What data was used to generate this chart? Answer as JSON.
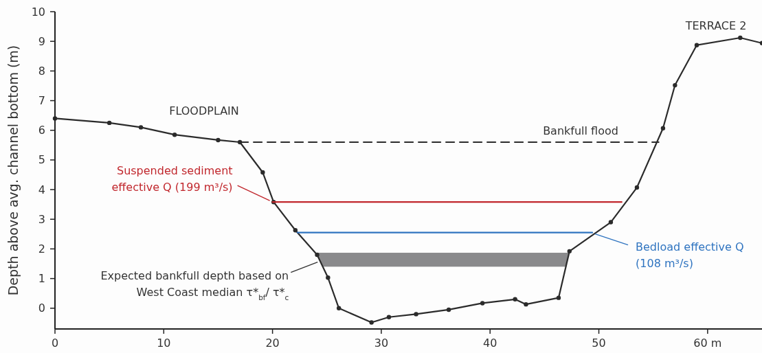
{
  "chart_data": {
    "type": "line",
    "ylabel": "Depth above avg. channel bottom (m)",
    "xlim": [
      0,
      65
    ],
    "ylim": [
      -0.7,
      10
    ],
    "xticks": [
      0,
      10,
      20,
      30,
      40,
      50,
      {
        "value": 60,
        "label": "60 m"
      }
    ],
    "yticks": [
      0,
      1,
      2,
      3,
      4,
      5,
      6,
      7,
      8,
      9,
      10
    ],
    "grid": false,
    "bands": [
      {
        "axis": "y",
        "from": 1.4,
        "to": 1.87,
        "color": "#8a8a8c"
      }
    ],
    "series": [
      {
        "color": "#2b2b2b",
        "marker": "circle",
        "line_style": "solid",
        "x": [
          0,
          5,
          7.9,
          11,
          15,
          17,
          19.1,
          20.1,
          22.1,
          24.1,
          25.1,
          26.1,
          29.1,
          30.7,
          33.2,
          36.2,
          39.3,
          42.3,
          43.3,
          46.3,
          47.3,
          51.1,
          53.5,
          55.9,
          57,
          59,
          63,
          65
        ],
        "values": [
          6.4,
          6.25,
          6.1,
          5.85,
          5.67,
          5.6,
          4.58,
          3.58,
          2.63,
          1.8,
          1.03,
          0,
          -0.48,
          -0.3,
          -0.2,
          -0.05,
          0.17,
          0.3,
          0.13,
          0.35,
          1.92,
          2.9,
          4.07,
          6.07,
          7.52,
          8.87,
          9.12,
          8.94
        ]
      },
      {
        "color": "#2b2b2b",
        "marker": "none",
        "line_style": "dashed",
        "x": [
          17,
          55.5
        ],
        "values": [
          5.6,
          5.6
        ]
      },
      {
        "color": "#c1272d",
        "marker": "none",
        "line_style": "solid",
        "x": [
          20,
          52.1
        ],
        "values": [
          3.58,
          3.58
        ]
      },
      {
        "color": "#2f74c0",
        "marker": "none",
        "line_style": "solid",
        "x": [
          22.3,
          49.4
        ],
        "values": [
          2.55,
          2.55
        ]
      }
    ],
    "annotations": [
      "FLOODPLAIN",
      "TERRACE 2",
      "Bankfull flood",
      {
        "text": "Suspended sediment\neffective Q (199 m³/s)",
        "x": 20,
        "y": 3.58
      },
      {
        "text": "Bedload effective Q\n(108 m³/s)",
        "x": 49.4,
        "y": 2.55
      },
      {
        "text": "Expected bankfull depth based on\nWest Coast median τ*$_{bf}$/ τ*$_{c}$",
        "x": 24.4,
        "y": 1.6
      }
    ]
  }
}
